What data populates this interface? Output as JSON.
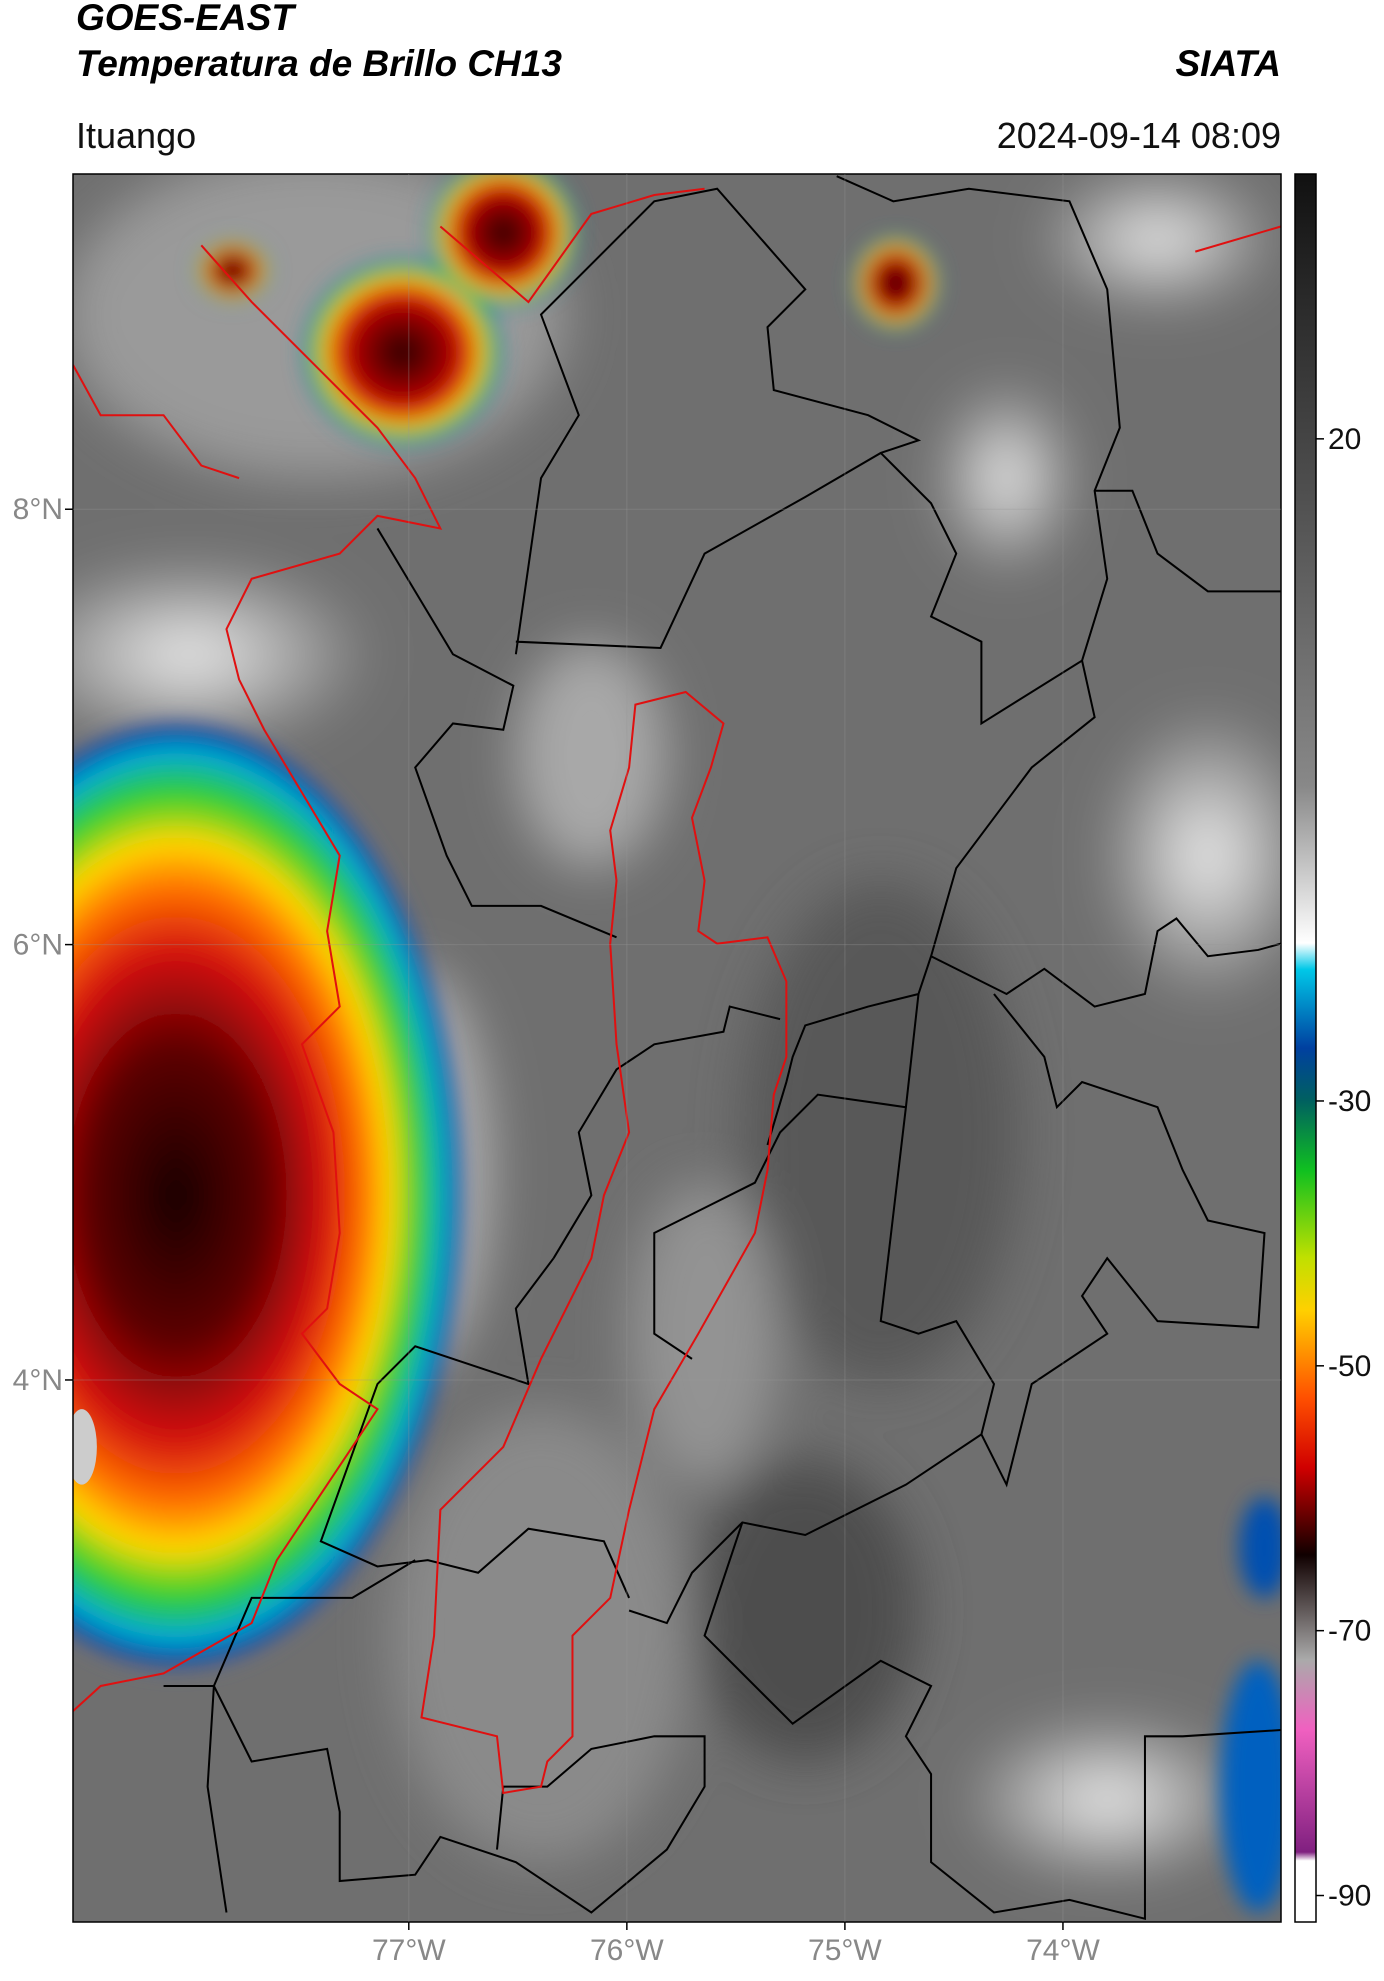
{
  "header": {
    "title": "GOES-EAST",
    "subtitle": "Temperatura de Brillo CH13",
    "source": "SIATA",
    "region": "Ituango",
    "timestamp": "2024-09-14 08:09"
  },
  "map": {
    "xlim": [
      -78.54,
      -73.0
    ],
    "ylim": [
      1.51,
      9.54
    ],
    "xticks": [
      {
        "value": -77,
        "label": "77°W"
      },
      {
        "value": -76,
        "label": "76°W"
      },
      {
        "value": -75,
        "label": "75°W"
      },
      {
        "value": -74,
        "label": "74°W"
      }
    ],
    "yticks": [
      {
        "value": 8,
        "label": "8°N"
      },
      {
        "value": 6,
        "label": "6°N"
      },
      {
        "value": 4,
        "label": "4°N"
      }
    ]
  },
  "colorbar": {
    "lim": [
      -92,
      40
    ],
    "ticks": [
      20,
      -30,
      -50,
      -70,
      -90
    ]
  }
}
